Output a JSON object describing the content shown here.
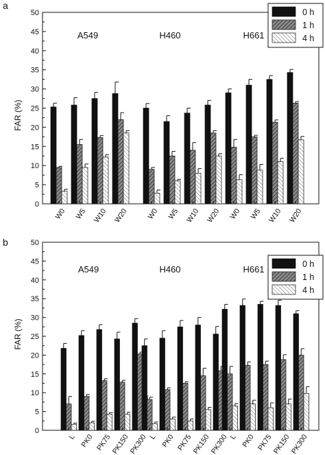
{
  "figure": {
    "panels": [
      "a",
      "b"
    ]
  },
  "chart_data": [
    {
      "panel": "a",
      "type": "bar",
      "title": "",
      "ylabel": "FAR (%)",
      "xlabel": "",
      "ylim": [
        0,
        50
      ],
      "yticks": [
        0,
        5,
        10,
        15,
        20,
        25,
        30,
        35,
        40,
        45,
        50
      ],
      "legend": {
        "placement": "top-right",
        "entries": [
          "0 h",
          "1 h",
          "4 h"
        ]
      },
      "colors": {
        "0 h": "#111111",
        "1 h": "#6e6e6e",
        "4 h": "#ffffff"
      },
      "patterns": {
        "0 h": "solid",
        "1 h": "diagonal-hatch",
        "4 h": "diagonal-hatch-light"
      },
      "groups": [
        {
          "name": "A549",
          "categories": [
            "W0",
            "W5",
            "W10",
            "W20"
          ],
          "series": [
            {
              "name": "0 h",
              "values": [
                25.3,
                25.8,
                27.5,
                28.8
              ],
              "errors": [
                1.0,
                1.9,
                1.6,
                3.0
              ]
            },
            {
              "name": "1 h",
              "values": [
                9.5,
                15.5,
                17.3,
                22.0
              ],
              "errors": [
                0.3,
                1.3,
                0.5,
                1.8
              ]
            },
            {
              "name": "4 h",
              "values": [
                3.3,
                9.5,
                12.2,
                18.5
              ],
              "errors": [
                0.5,
                0.9,
                0.6,
                0.6
              ]
            }
          ]
        },
        {
          "name": "H460",
          "categories": [
            "W0",
            "W5",
            "W10",
            "W20"
          ],
          "series": [
            {
              "name": "0 h",
              "values": [
                25.0,
                21.5,
                23.7,
                25.8
              ],
              "errors": [
                1.2,
                1.5,
                1.3,
                1.2
              ]
            },
            {
              "name": "1 h",
              "values": [
                9.0,
                12.5,
                14.0,
                18.5
              ],
              "errors": [
                0.5,
                1.2,
                2.0,
                0.6
              ]
            },
            {
              "name": "4 h",
              "values": [
                2.8,
                6.0,
                8.0,
                12.5
              ],
              "errors": [
                0.8,
                0.4,
                1.2,
                0.6
              ]
            }
          ]
        },
        {
          "name": "H661",
          "categories": [
            "W0",
            "W5",
            "W10",
            "W20"
          ],
          "series": [
            {
              "name": "0 h",
              "values": [
                29.0,
                31.0,
                32.5,
                34.3
              ],
              "errors": [
                1.0,
                1.5,
                1.0,
                0.8
              ]
            },
            {
              "name": "1 h",
              "values": [
                14.8,
                17.5,
                21.3,
                26.3
              ],
              "errors": [
                2.0,
                0.4,
                0.6,
                0.4
              ]
            },
            {
              "name": "4 h",
              "values": [
                6.3,
                8.8,
                11.0,
                16.7
              ],
              "errors": [
                1.3,
                1.5,
                0.9,
                0.9
              ]
            }
          ]
        }
      ]
    },
    {
      "panel": "b",
      "type": "bar",
      "title": "",
      "ylabel": "FAR (%)",
      "xlabel": "",
      "ylim": [
        0,
        50
      ],
      "yticks": [
        0,
        5,
        10,
        15,
        20,
        25,
        30,
        35,
        40,
        45,
        50
      ],
      "legend": {
        "placement": "top-right",
        "entries": [
          "0 h",
          "1 h",
          "4 h"
        ]
      },
      "colors": {
        "0 h": "#111111",
        "1 h": "#6e6e6e",
        "4 h": "#ffffff"
      },
      "patterns": {
        "0 h": "solid",
        "1 h": "diagonal-hatch",
        "4 h": "diagonal-hatch-light"
      },
      "groups": [
        {
          "name": "A549",
          "categories": [
            "L",
            "PK0",
            "PK75",
            "PK150",
            "PK300"
          ],
          "series": [
            {
              "name": "0 h",
              "values": [
                21.8,
                25.2,
                26.8,
                24.3,
                28.5
              ],
              "errors": [
                1.3,
                1.3,
                1.3,
                1.8,
                1.2
              ]
            },
            {
              "name": "1 h",
              "values": [
                7.0,
                9.0,
                13.2,
                12.8,
                20.3
              ],
              "errors": [
                2.0,
                0.5,
                0.5,
                0.5,
                0.5
              ]
            },
            {
              "name": "4 h",
              "values": [
                1.6,
                2.0,
                4.3,
                4.3,
                8.7
              ],
              "errors": [
                0.3,
                0.4,
                0.4,
                0.5,
                0.4
              ]
            }
          ]
        },
        {
          "name": "H460",
          "categories": [
            "L",
            "PK0",
            "PK75",
            "PK150",
            "PK300"
          ],
          "series": [
            {
              "name": "0 h",
              "values": [
                22.5,
                24.5,
                27.5,
                28.0,
                25.6
              ],
              "errors": [
                1.8,
                2.0,
                1.7,
                2.0,
                2.0
              ]
            },
            {
              "name": "1 h",
              "values": [
                8.2,
                10.8,
                12.5,
                14.5,
                15.8
              ],
              "errors": [
                0.6,
                0.5,
                0.4,
                2.0,
                1.2
              ]
            },
            {
              "name": "4 h",
              "values": [
                1.8,
                3.0,
                2.5,
                5.5,
                5.7
              ],
              "errors": [
                0.4,
                0.5,
                0.5,
                0.6,
                0.7
              ]
            }
          ]
        },
        {
          "name": "H661",
          "categories": [
            "L",
            "PK0",
            "PK75",
            "PK150",
            "PK300"
          ],
          "series": [
            {
              "name": "0 h",
              "values": [
                32.2,
                33.2,
                33.5,
                33.2,
                31.0
              ],
              "errors": [
                1.3,
                1.7,
                0.8,
                1.4,
                0.8
              ]
            },
            {
              "name": "1 h",
              "values": [
                15.0,
                17.3,
                17.5,
                18.8,
                20.0
              ],
              "errors": [
                2.0,
                0.9,
                0.9,
                1.3,
                1.7
              ]
            },
            {
              "name": "4 h",
              "values": [
                6.5,
                7.0,
                6.0,
                7.0,
                9.8
              ],
              "errors": [
                0.6,
                1.0,
                1.3,
                1.3,
                1.8
              ]
            }
          ]
        }
      ]
    }
  ]
}
